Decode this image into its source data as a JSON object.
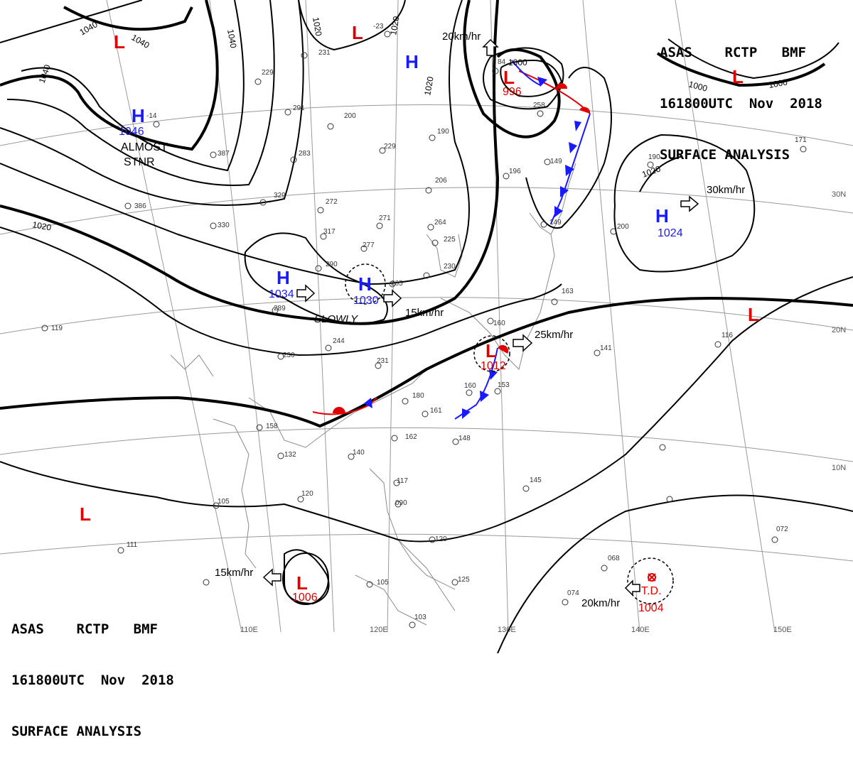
{
  "header_top": {
    "line1": [
      "ASAS",
      "RCTP",
      "BMF"
    ],
    "line2": [
      "161800UTC",
      "Nov",
      "2018"
    ],
    "line3": "SURFACE ANALYSIS"
  },
  "header_bottom": {
    "line1": [
      "ASAS",
      "RCTP",
      "BMF"
    ],
    "line2": [
      "161800UTC",
      "Nov",
      "2018"
    ],
    "line3": "SURFACE ANALYSIS"
  },
  "high_centers": [
    {
      "symbol": "H",
      "value": "1046",
      "note": "ALMOST",
      "note2": "STNR"
    },
    {
      "symbol": "H",
      "value": ""
    },
    {
      "symbol": "H",
      "value": "1034"
    },
    {
      "symbol": "H",
      "value": "1030"
    },
    {
      "symbol": "H",
      "value": "1024"
    }
  ],
  "low_centers": [
    {
      "symbol": "L",
      "value": ""
    },
    {
      "symbol": "L",
      "value": ""
    },
    {
      "symbol": "L",
      "value": "996"
    },
    {
      "symbol": "L",
      "value": ""
    },
    {
      "symbol": "L",
      "value": "1012"
    },
    {
      "symbol": "L",
      "value": ""
    },
    {
      "symbol": "L",
      "value": ""
    },
    {
      "symbol": "L",
      "value": "1006"
    }
  ],
  "tropical_depression": {
    "label": "T.D.",
    "value": "1004"
  },
  "movements": {
    "low_north": "20km/hr",
    "high_east": "30km/hr",
    "high_china": "SLOWLY",
    "high_central": "15km/hr",
    "low_japan": "25km/hr",
    "low_south": "15km/hr",
    "td": "20km/hr"
  },
  "isobar_labels": [
    "1040",
    "1040",
    "1040",
    "1040",
    "1020",
    "1020",
    "1020",
    "1000",
    "1000",
    "1000",
    "1020",
    "1020"
  ],
  "lat_labels": [
    "30N",
    "20N",
    "10N"
  ],
  "lon_labels": [
    "110E",
    "120E",
    "130E",
    "140E",
    "150E"
  ],
  "colors": {
    "high": "#1a1aff",
    "low": "#e00000",
    "isobar": "#000000",
    "grid": "#9a9a9a"
  }
}
